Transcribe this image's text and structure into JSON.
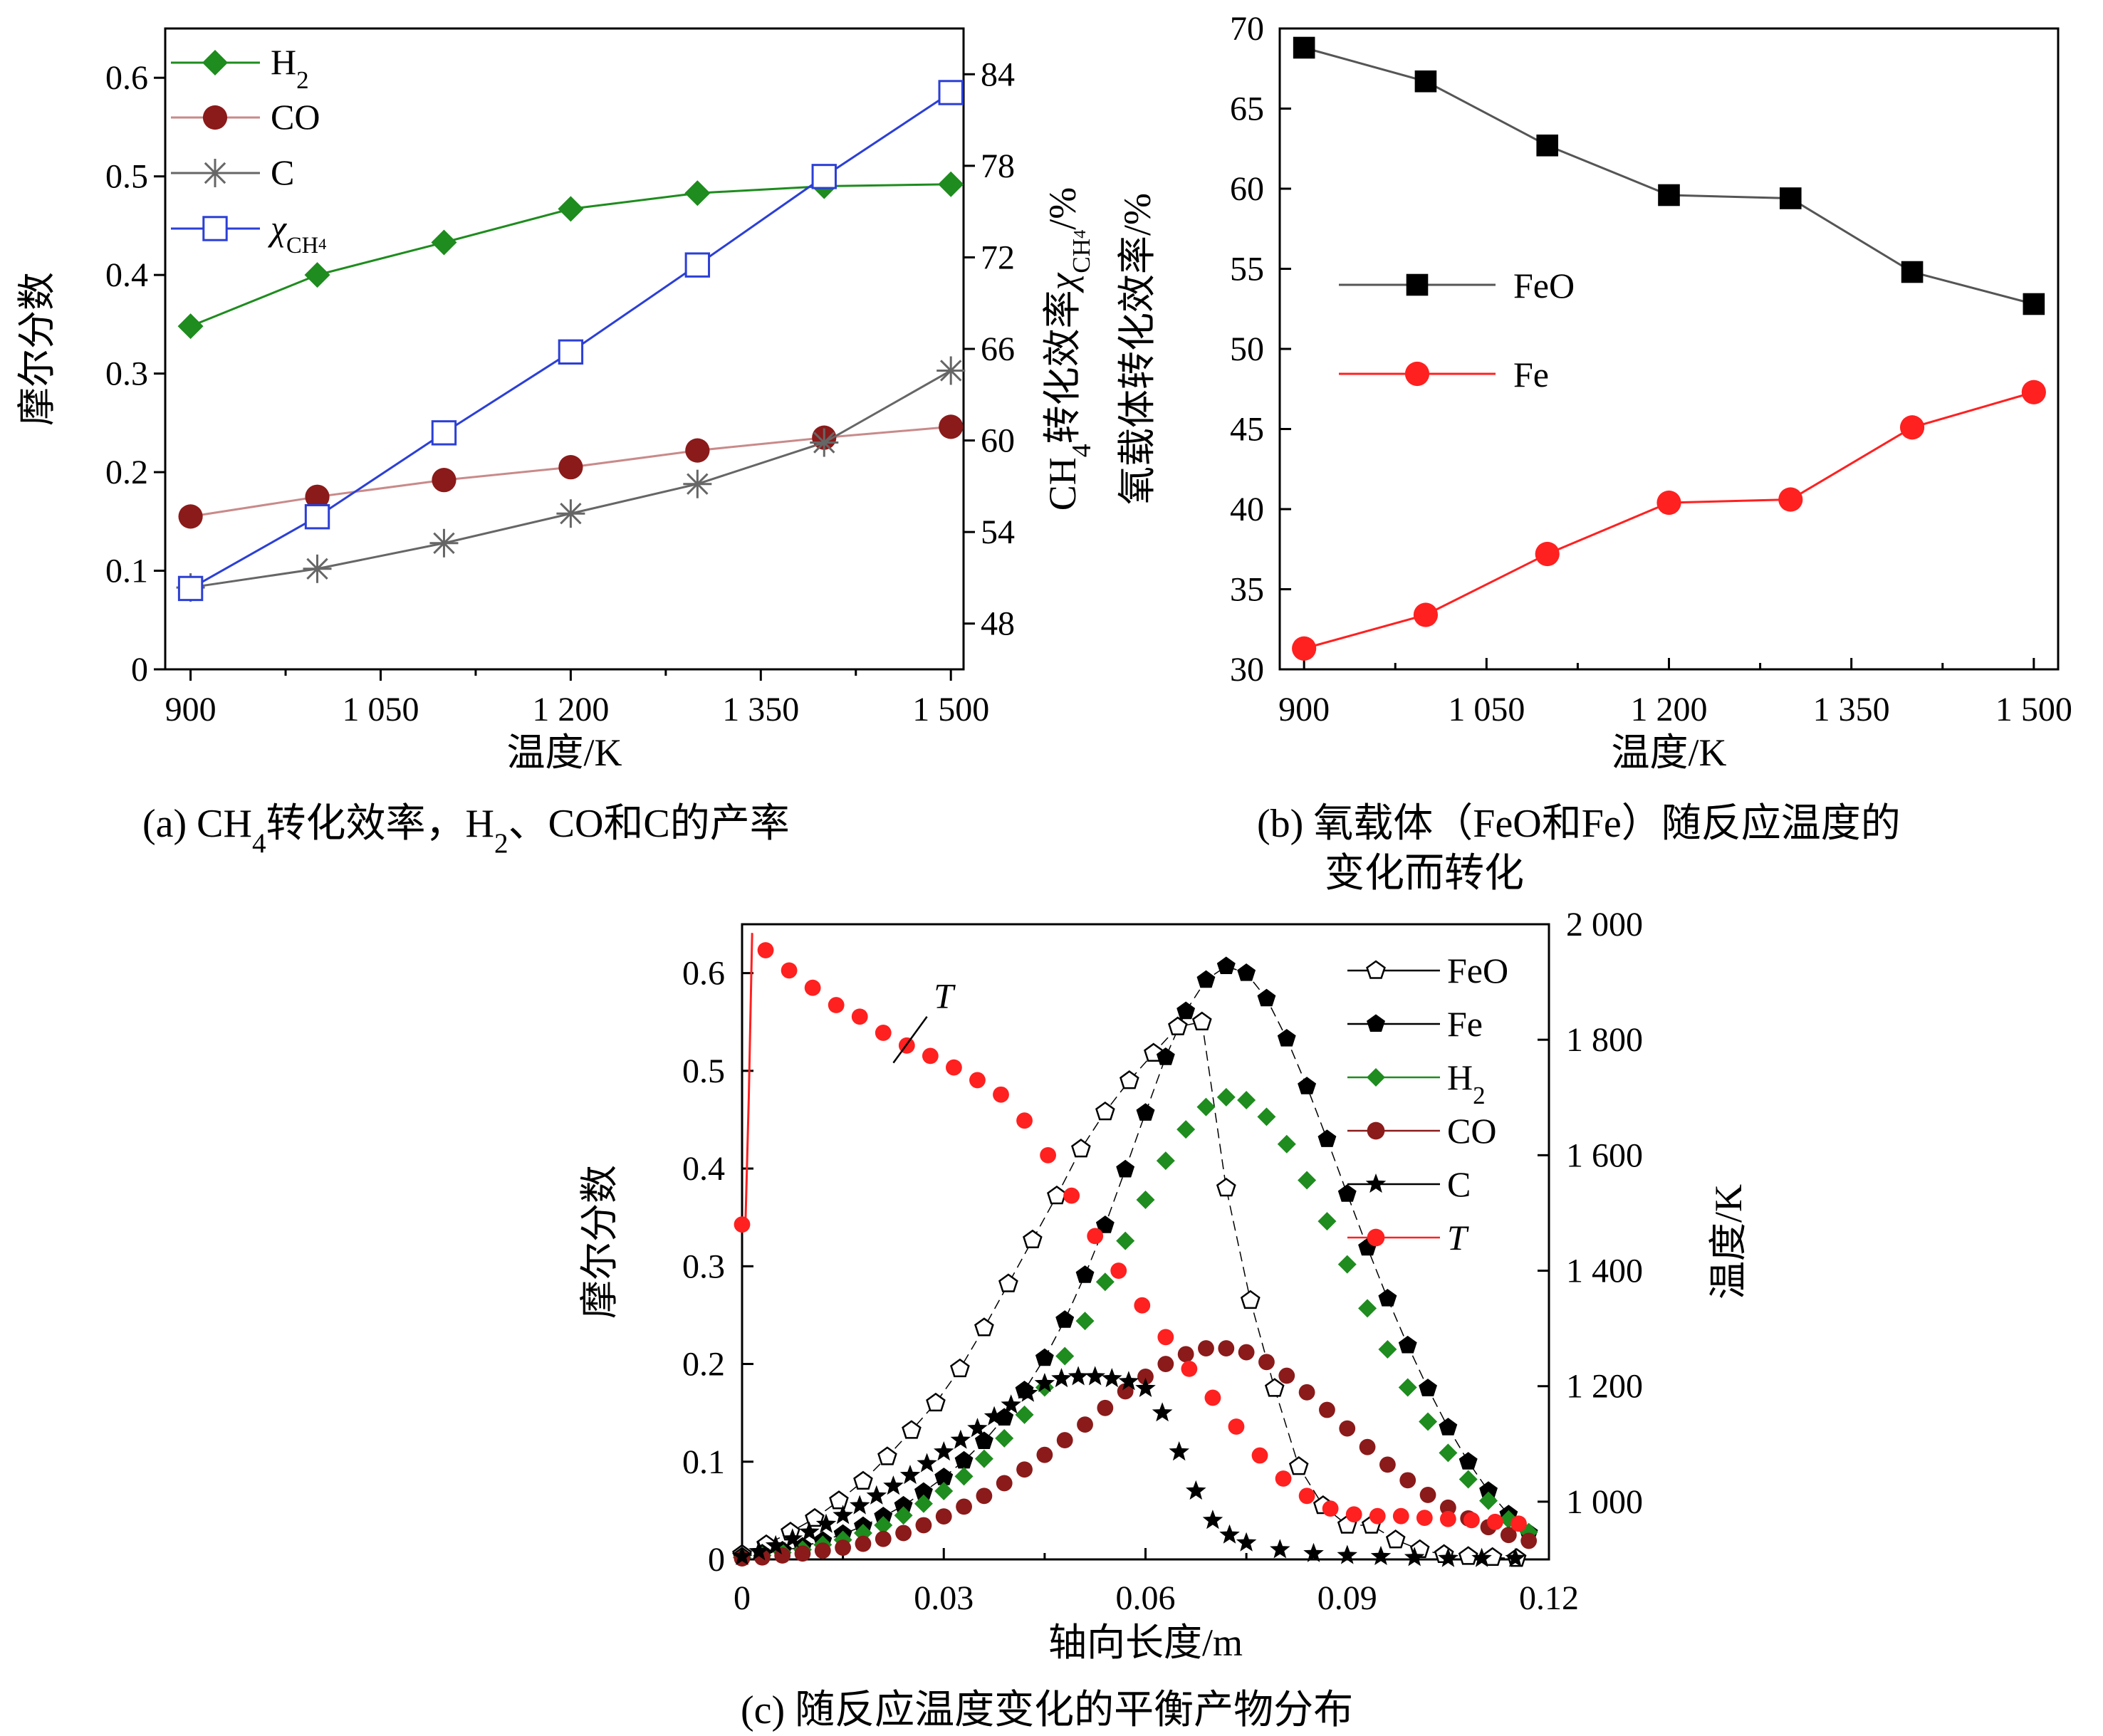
{
  "chart_data": [
    {
      "id": "a",
      "type": "line",
      "caption": "(a) CH₄转化效率，H₂、CO和C的产率",
      "xlabel": "温度/K",
      "ylabel": "摩尔分数",
      "y2label": "CH₄转化效率χCH₄/%",
      "xlim": [
        880,
        1510
      ],
      "ylim": [
        0,
        0.65
      ],
      "y2lim": [
        45,
        87
      ],
      "xticks": [
        900,
        1050,
        1200,
        1350,
        1500
      ],
      "xtick_labels": [
        "900",
        "1 050",
        "1 200",
        "1 350",
        "1 500"
      ],
      "yticks": [
        0,
        0.1,
        0.2,
        0.3,
        0.4,
        0.5,
        0.6
      ],
      "ytick_labels": [
        "0",
        "0.1",
        "0.2",
        "0.3",
        "0.4",
        "0.5",
        "0.6"
      ],
      "y2ticks": [
        48,
        54,
        60,
        66,
        72,
        78,
        84
      ],
      "y2tick_labels": [
        "48",
        "54",
        "60",
        "66",
        "72",
        "78",
        "84"
      ],
      "legend_position": "top-left",
      "x": [
        900,
        1000,
        1100,
        1200,
        1300,
        1400,
        1500
      ],
      "series": [
        {
          "name": "H₂",
          "axis": "left",
          "marker": "diamond",
          "color": "#1e8c1e",
          "values": [
            0.348,
            0.4,
            0.433,
            0.467,
            0.483,
            0.49,
            0.492
          ]
        },
        {
          "name": "CO",
          "axis": "left",
          "marker": "circle",
          "color": "#8b1a1a",
          "line_color": "#c98a8a",
          "values": [
            0.155,
            0.175,
            0.192,
            0.205,
            0.222,
            0.235,
            0.246
          ]
        },
        {
          "name": "C",
          "axis": "left",
          "marker": "asterisk",
          "color": "#666666",
          "values": [
            0.083,
            0.102,
            0.128,
            0.158,
            0.188,
            0.23,
            0.303
          ]
        },
        {
          "name": "χCH₄",
          "axis": "right",
          "marker": "square-open",
          "color": "#2b3fd6",
          "values": [
            50.3,
            55.0,
            60.5,
            65.8,
            71.5,
            77.3,
            82.8
          ]
        }
      ]
    },
    {
      "id": "b",
      "type": "line",
      "caption_lines": [
        "(b) 氧载体（FeO和Fe）随反应温度的",
        "变化而转化"
      ],
      "xlabel": "温度/K",
      "ylabel": "氧载体转化效率/%",
      "xlim": [
        880,
        1520
      ],
      "ylim": [
        30,
        70
      ],
      "xticks": [
        900,
        1050,
        1200,
        1350,
        1500
      ],
      "xtick_labels": [
        "900",
        "1 050",
        "1 200",
        "1 350",
        "1 500"
      ],
      "yticks": [
        30,
        35,
        40,
        45,
        50,
        55,
        60,
        65,
        70
      ],
      "ytick_labels": [
        "30",
        "35",
        "40",
        "45",
        "50",
        "55",
        "60",
        "65",
        "70"
      ],
      "legend_position": "center-left",
      "x": [
        900,
        1000,
        1100,
        1200,
        1300,
        1400,
        1500
      ],
      "series": [
        {
          "name": "FeO",
          "marker": "square",
          "color": "#000000",
          "line_color": "#555555",
          "values": [
            68.8,
            66.7,
            62.7,
            59.6,
            59.4,
            54.8,
            52.8
          ]
        },
        {
          "name": "Fe",
          "marker": "circle",
          "color": "#ff2020",
          "values": [
            31.3,
            33.4,
            37.2,
            40.4,
            40.6,
            45.1,
            47.3
          ]
        }
      ]
    },
    {
      "id": "c",
      "type": "scatter",
      "caption": "(c) 随反应温度变化的平衡产物分布",
      "xlabel": "轴向长度/m",
      "ylabel": "摩尔分数",
      "y2label": "温度/K",
      "xlim": [
        0,
        0.12
      ],
      "ylim": [
        0,
        0.65
      ],
      "y2lim": [
        900,
        2000
      ],
      "xticks": [
        0,
        0.03,
        0.06,
        0.09,
        0.12
      ],
      "xtick_labels": [
        "0",
        "0.03",
        "0.06",
        "0.09",
        "0.12"
      ],
      "yticks": [
        0,
        0.1,
        0.2,
        0.3,
        0.4,
        0.5,
        0.6
      ],
      "ytick_labels": [
        "0",
        "0.1",
        "0.2",
        "0.3",
        "0.4",
        "0.5",
        "0.6"
      ],
      "y2ticks": [
        1000,
        1200,
        1400,
        1600,
        1800,
        2000
      ],
      "y2tick_labels": [
        "1 000",
        "1 200",
        "1 400",
        "1 600",
        "1 800",
        "2 000"
      ],
      "legend_position": "top-right",
      "annotation": {
        "text": "T",
        "x": 0.0285,
        "y2": 1850
      },
      "series": [
        {
          "name": "FeO",
          "marker": "pentagon-open",
          "color": "#000000",
          "x": [
            0,
            0.0036,
            0.0072,
            0.0108,
            0.0144,
            0.018,
            0.0216,
            0.0252,
            0.0288,
            0.0324,
            0.036,
            0.0396,
            0.0432,
            0.0468,
            0.0504,
            0.054,
            0.0576,
            0.0612,
            0.0648,
            0.0684,
            0.072,
            0.0756,
            0.0792,
            0.0828,
            0.0864,
            0.09,
            0.0936,
            0.0972,
            0.1008,
            0.1044,
            0.108,
            0.1116,
            0.1152
          ],
          "y": [
            0.005,
            0.015,
            0.028,
            0.042,
            0.06,
            0.08,
            0.105,
            0.132,
            0.16,
            0.195,
            0.237,
            0.282,
            0.327,
            0.372,
            0.42,
            0.458,
            0.49,
            0.518,
            0.545,
            0.55,
            0.38,
            0.265,
            0.175,
            0.095,
            0.055,
            0.035,
            0.035,
            0.02,
            0.01,
            0.005,
            0.003,
            0.002,
            0.001
          ]
        },
        {
          "name": "Fe",
          "marker": "pentagon",
          "color": "#000000",
          "x": [
            0.0,
            0.003,
            0.006,
            0.009,
            0.012,
            0.015,
            0.018,
            0.021,
            0.024,
            0.027,
            0.03,
            0.033,
            0.036,
            0.039,
            0.042,
            0.045,
            0.048,
            0.051,
            0.054,
            0.057,
            0.06,
            0.063,
            0.066,
            0.069,
            0.072,
            0.075,
            0.078,
            0.081,
            0.084,
            0.087,
            0.09,
            0.093,
            0.096,
            0.099,
            0.102,
            0.105,
            0.108,
            0.111,
            0.114,
            0.117
          ],
          "y": [
            0.003,
            0.006,
            0.009,
            0.013,
            0.019,
            0.026,
            0.034,
            0.044,
            0.055,
            0.069,
            0.084,
            0.101,
            0.121,
            0.145,
            0.173,
            0.206,
            0.245,
            0.291,
            0.342,
            0.399,
            0.457,
            0.514,
            0.561,
            0.593,
            0.607,
            0.6,
            0.574,
            0.533,
            0.484,
            0.43,
            0.374,
            0.319,
            0.267,
            0.219,
            0.175,
            0.135,
            0.1,
            0.07,
            0.046,
            0.027
          ]
        },
        {
          "name": "H₂",
          "marker": "diamond",
          "color": "#1e8c1e",
          "x": [
            0.0,
            0.003,
            0.006,
            0.009,
            0.012,
            0.015,
            0.018,
            0.021,
            0.024,
            0.027,
            0.03,
            0.033,
            0.036,
            0.039,
            0.042,
            0.045,
            0.048,
            0.051,
            0.054,
            0.057,
            0.06,
            0.063,
            0.066,
            0.069,
            0.072,
            0.075,
            0.078,
            0.081,
            0.084,
            0.087,
            0.09,
            0.093,
            0.096,
            0.099,
            0.102,
            0.105,
            0.108,
            0.111,
            0.114,
            0.117
          ],
          "y": [
            0.002,
            0.004,
            0.007,
            0.01,
            0.015,
            0.02,
            0.027,
            0.035,
            0.045,
            0.057,
            0.07,
            0.085,
            0.103,
            0.124,
            0.148,
            0.176,
            0.208,
            0.244,
            0.284,
            0.326,
            0.368,
            0.408,
            0.44,
            0.463,
            0.473,
            0.47,
            0.453,
            0.425,
            0.388,
            0.346,
            0.302,
            0.257,
            0.215,
            0.176,
            0.141,
            0.109,
            0.082,
            0.06,
            0.041,
            0.028
          ]
        },
        {
          "name": "CO",
          "marker": "circle",
          "color": "#8b1a1a",
          "x": [
            0.0,
            0.003,
            0.006,
            0.009,
            0.012,
            0.015,
            0.018,
            0.021,
            0.024,
            0.027,
            0.03,
            0.033,
            0.036,
            0.039,
            0.042,
            0.045,
            0.048,
            0.051,
            0.054,
            0.057,
            0.06,
            0.063,
            0.066,
            0.069,
            0.072,
            0.075,
            0.078,
            0.081,
            0.084,
            0.087,
            0.09,
            0.093,
            0.096,
            0.099,
            0.102,
            0.105,
            0.108,
            0.111,
            0.114,
            0.117
          ],
          "y": [
            0.001,
            0.002,
            0.004,
            0.006,
            0.009,
            0.012,
            0.016,
            0.021,
            0.027,
            0.035,
            0.044,
            0.054,
            0.065,
            0.078,
            0.092,
            0.107,
            0.122,
            0.138,
            0.155,
            0.172,
            0.187,
            0.2,
            0.21,
            0.216,
            0.216,
            0.212,
            0.202,
            0.188,
            0.171,
            0.153,
            0.134,
            0.115,
            0.097,
            0.081,
            0.066,
            0.053,
            0.042,
            0.033,
            0.025,
            0.019
          ]
        },
        {
          "name": "C",
          "marker": "star",
          "color": "#000000",
          "x": [
            0,
            0.0025,
            0.005,
            0.0075,
            0.01,
            0.0125,
            0.015,
            0.0175,
            0.02,
            0.0225,
            0.025,
            0.0275,
            0.03,
            0.0325,
            0.035,
            0.0375,
            0.04,
            0.0425,
            0.045,
            0.0475,
            0.05,
            0.0525,
            0.055,
            0.0575,
            0.06,
            0.0625,
            0.065,
            0.0675,
            0.07,
            0.0725,
            0.075,
            0.08,
            0.085,
            0.09,
            0.095,
            0.1,
            0.105,
            0.11,
            0.115
          ],
          "y": [
            0.003,
            0.008,
            0.014,
            0.021,
            0.028,
            0.036,
            0.045,
            0.055,
            0.065,
            0.075,
            0.086,
            0.098,
            0.11,
            0.122,
            0.134,
            0.146,
            0.158,
            0.17,
            0.18,
            0.185,
            0.187,
            0.187,
            0.185,
            0.182,
            0.175,
            0.15,
            0.11,
            0.07,
            0.04,
            0.025,
            0.017,
            0.01,
            0.006,
            0.004,
            0.003,
            0.002,
            0.001,
            0.001,
            0.001
          ]
        },
        {
          "name": "T",
          "marker": "circle",
          "color": "#ff2020",
          "axis": "right",
          "x": [
            0.0,
            0.0035,
            0.007,
            0.0105,
            0.014,
            0.0175,
            0.021,
            0.0245,
            0.028,
            0.0315,
            0.035,
            0.0385,
            0.042,
            0.0455,
            0.049,
            0.0525,
            0.056,
            0.0595,
            0.063,
            0.0665,
            0.07,
            0.0735,
            0.077,
            0.0805,
            0.084,
            0.0875,
            0.091,
            0.0945,
            0.098,
            0.1015,
            0.105,
            0.1085,
            0.112,
            0.1155
          ],
          "y2": [
            1480,
            1955,
            1920,
            1890,
            1860,
            1840,
            1812,
            1790,
            1772,
            1752,
            1730,
            1705,
            1660,
            1600,
            1530,
            1460,
            1400,
            1340,
            1285,
            1230,
            1180,
            1130,
            1080,
            1040,
            1010,
            988,
            978,
            975,
            975,
            972,
            970,
            968,
            965,
            962
          ]
        }
      ]
    }
  ]
}
